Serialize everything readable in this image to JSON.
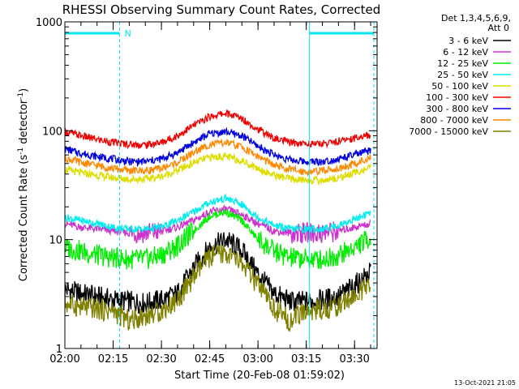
{
  "chart_data": {
    "type": "line",
    "title": "RHESSI Observing Summary Count Rates, Corrected",
    "xlabel": "Start Time (20-Feb-08 01:59:02)",
    "ylabel_main": "Corrected Count Rate (s",
    "ylabel_sup1": "-1",
    "ylabel_mid": " detector",
    "ylabel_sup2": "-1",
    "ylabel_end": ")",
    "yscale": "log",
    "ylim": [
      1,
      1000
    ],
    "xlim": [
      "02:00",
      "03:37"
    ],
    "x_ticks": [
      "02:00",
      "02:15",
      "02:30",
      "02:45",
      "03:00",
      "03:15",
      "03:30"
    ],
    "y_ticks": [
      "1",
      "10",
      "100",
      "1000"
    ],
    "legend_title_1": "Det 1,3,4,5,6,9,",
    "legend_title_2": "Att 0",
    "legend_position": "right",
    "grid": false,
    "night_marker_label": "N",
    "night_intervals": [
      [
        "02:00",
        "02:17"
      ],
      [
        "03:16",
        "03:36"
      ]
    ],
    "x": [
      "02:00",
      "02:05",
      "02:10",
      "02:15",
      "02:20",
      "02:25",
      "02:30",
      "02:35",
      "02:40",
      "02:45",
      "02:50",
      "02:55",
      "03:00",
      "03:05",
      "03:10",
      "03:15",
      "03:20",
      "03:25",
      "03:30",
      "03:35"
    ],
    "series": [
      {
        "name": "3 - 6 keV",
        "color": "#000000",
        "values": [
          3.5,
          3.2,
          3.0,
          2.8,
          2.7,
          2.6,
          2.8,
          3.2,
          5.5,
          8.5,
          10,
          8.0,
          4.8,
          3.2,
          2.7,
          2.7,
          2.8,
          3.0,
          3.8,
          5.0
        ]
      },
      {
        "name": "6 - 12 keV",
        "color": "#cc33cc",
        "values": [
          14,
          13,
          12.5,
          12,
          11.5,
          11.5,
          12,
          13,
          15,
          18,
          19,
          17,
          14,
          12,
          11.5,
          11.5,
          11.5,
          12,
          13,
          14
        ]
      },
      {
        "name": "12 - 25 keV",
        "color": "#00ee00",
        "values": [
          8.5,
          7.8,
          7.2,
          6.8,
          6.6,
          6.6,
          7.2,
          8.8,
          12,
          16.5,
          18,
          15,
          10,
          7.8,
          6.8,
          6.6,
          6.6,
          7.2,
          8.5,
          10.5
        ]
      },
      {
        "name": "25 - 50 keV",
        "color": "#00eeee",
        "values": [
          16,
          15,
          14,
          13,
          12.5,
          12.5,
          13,
          15,
          18,
          22,
          24,
          21,
          16,
          13.5,
          12.5,
          12.5,
          12.5,
          13.5,
          15.5,
          17.5
        ]
      },
      {
        "name": "50 - 100 keV",
        "color": "#dddd00",
        "values": [
          44,
          41,
          39,
          37,
          36,
          36,
          38,
          43,
          51,
          57,
          58,
          53,
          45,
          39,
          36,
          35,
          35,
          37,
          41,
          46
        ]
      },
      {
        "name": "100 - 300 keV",
        "color": "#ee0000",
        "values": [
          98,
          90,
          83,
          78,
          75,
          74,
          78,
          90,
          112,
          135,
          145,
          130,
          103,
          85,
          78,
          76,
          76,
          80,
          86,
          92
        ]
      },
      {
        "name": "300 - 800 keV",
        "color": "#0000dd",
        "values": [
          68,
          62,
          58,
          55,
          52,
          52,
          55,
          63,
          78,
          94,
          98,
          90,
          72,
          60,
          54,
          52,
          52,
          55,
          60,
          66
        ]
      },
      {
        "name": "800 - 7000 keV",
        "color": "#ff8800",
        "values": [
          56,
          51,
          48,
          45,
          43,
          43,
          45,
          51,
          63,
          75,
          78,
          71,
          58,
          48,
          44,
          42,
          43,
          45,
          50,
          56
        ]
      },
      {
        "name": "7000 - 15000 keV",
        "color": "#808000",
        "values": [
          2.6,
          2.4,
          2.3,
          2.2,
          1.8,
          2.0,
          2.2,
          2.8,
          4.5,
          7.0,
          7.5,
          6.0,
          3.8,
          2.3,
          1.8,
          2.2,
          2.3,
          2.5,
          3.0,
          3.8
        ]
      }
    ],
    "footer_date": "13-Oct-2021 21:05"
  }
}
